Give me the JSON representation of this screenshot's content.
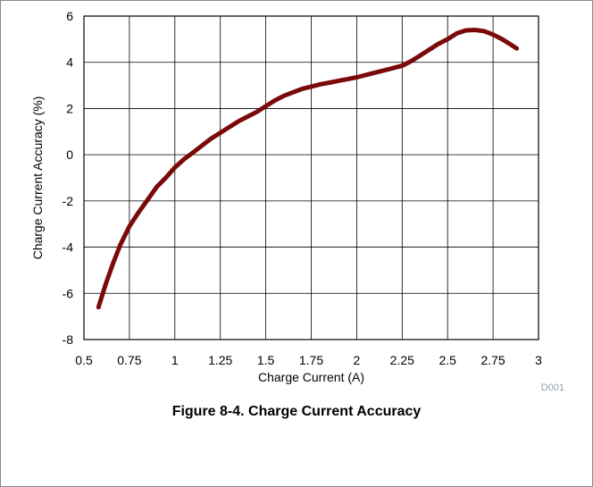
{
  "figure": {
    "code": "D001",
    "caption": "Figure 8-4. Charge Current Accuracy",
    "line_color": "#7a0a0a"
  },
  "chart_data": {
    "type": "line",
    "xlabel": "Charge Current (A)",
    "ylabel": "Charge Current Accuracy (%)",
    "xlim": [
      0.5,
      3
    ],
    "ylim": [
      -8,
      6
    ],
    "x_ticks": [
      "0.5",
      "0.75",
      "1",
      "1.25",
      "1.5",
      "1.75",
      "2",
      "2.25",
      "2.5",
      "2.75",
      "3"
    ],
    "y_ticks": [
      "-8",
      "-6",
      "-4",
      "-2",
      "0",
      "2",
      "4",
      "6"
    ],
    "grid": true,
    "series": [
      {
        "x": [
          0.58,
          0.62,
          0.66,
          0.7,
          0.75,
          0.8,
          0.85,
          0.9,
          0.95,
          1.0,
          1.05,
          1.1,
          1.15,
          1.2,
          1.25,
          1.3,
          1.35,
          1.4,
          1.45,
          1.5,
          1.55,
          1.6,
          1.65,
          1.7,
          1.75,
          1.8,
          1.85,
          1.9,
          1.95,
          2.0,
          2.05,
          2.1,
          2.15,
          2.2,
          2.25,
          2.3,
          2.35,
          2.4,
          2.45,
          2.5,
          2.55,
          2.6,
          2.65,
          2.7,
          2.75,
          2.8,
          2.85,
          2.88
        ],
        "y": [
          -6.6,
          -5.6,
          -4.7,
          -3.9,
          -3.1,
          -2.5,
          -1.95,
          -1.4,
          -1.0,
          -0.55,
          -0.2,
          0.1,
          0.4,
          0.7,
          0.95,
          1.2,
          1.45,
          1.65,
          1.85,
          2.1,
          2.35,
          2.55,
          2.7,
          2.85,
          2.95,
          3.05,
          3.12,
          3.2,
          3.27,
          3.35,
          3.45,
          3.55,
          3.65,
          3.75,
          3.85,
          4.05,
          4.3,
          4.55,
          4.8,
          5.0,
          5.25,
          5.38,
          5.4,
          5.35,
          5.2,
          5.0,
          4.75,
          4.6
        ]
      }
    ]
  }
}
